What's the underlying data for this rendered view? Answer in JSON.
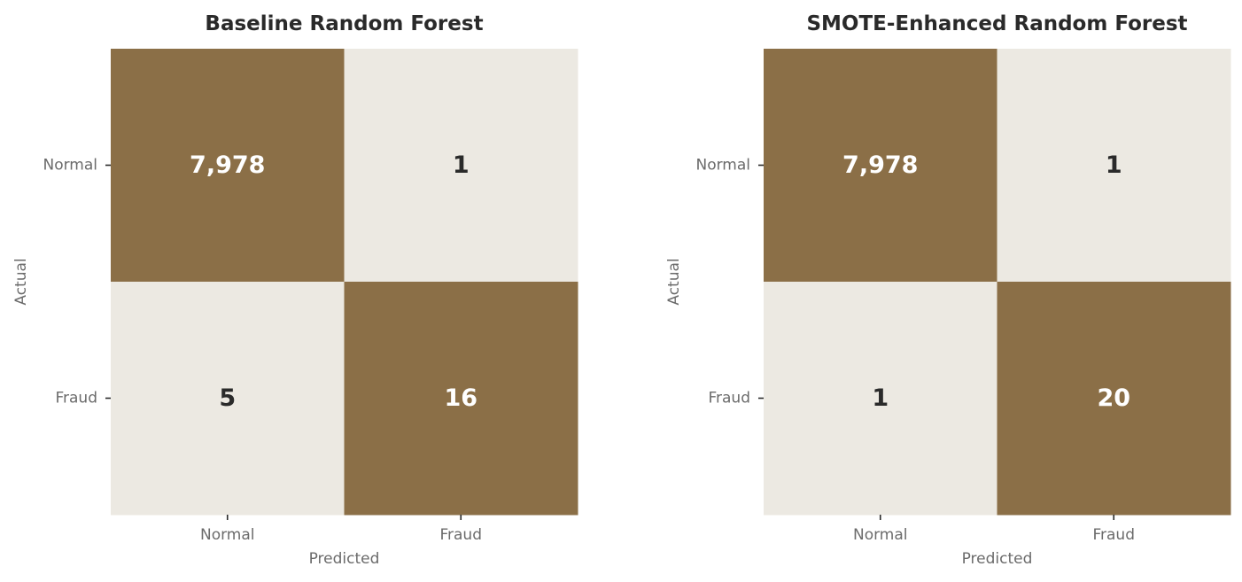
{
  "chart_data": [
    {
      "type": "heatmap",
      "title": "Baseline Random Forest",
      "xlabel": "Predicted",
      "ylabel": "Actual",
      "x_categories": [
        "Normal",
        "Fraud"
      ],
      "y_categories": [
        "Normal",
        "Fraud"
      ],
      "matrix": [
        [
          7978,
          1
        ],
        [
          5,
          16
        ]
      ],
      "cell_labels": [
        [
          "7,978",
          "1"
        ],
        [
          "5",
          "16"
        ]
      ],
      "colorbar": false
    },
    {
      "type": "heatmap",
      "title": "SMOTE-Enhanced Random Forest",
      "xlabel": "Predicted",
      "ylabel": "Actual",
      "x_categories": [
        "Normal",
        "Fraud"
      ],
      "y_categories": [
        "Normal",
        "Fraud"
      ],
      "matrix": [
        [
          7978,
          1
        ],
        [
          1,
          20
        ]
      ],
      "cell_labels": [
        [
          "7,978",
          "1"
        ],
        [
          "1",
          "20"
        ]
      ],
      "colorbar": false
    }
  ],
  "colors": {
    "high_cell": "#8b6f47",
    "low_cell": "#ece9e2",
    "text_on_high": "#ffffff",
    "text_on_low": "#2a2a2a"
  }
}
